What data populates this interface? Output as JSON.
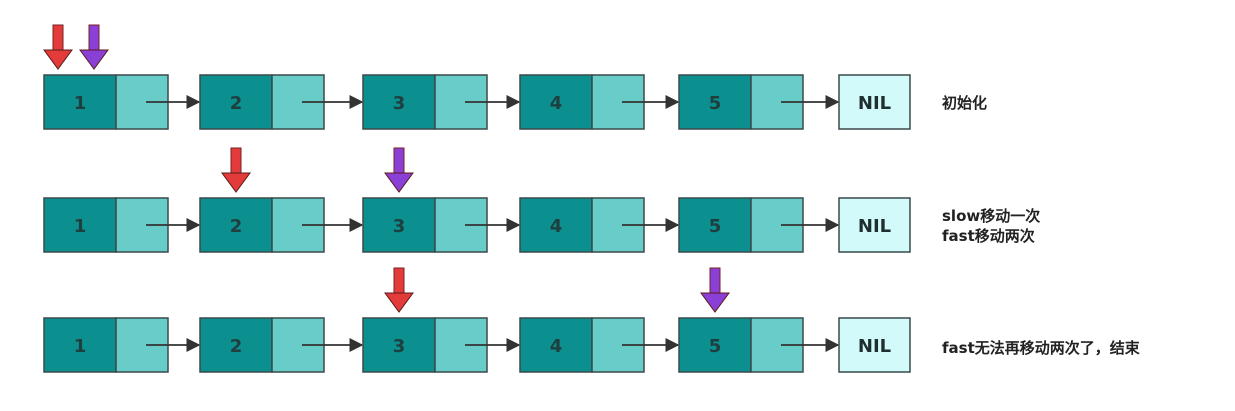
{
  "colors": {
    "data_cell": "#0b8f8f",
    "pointer_cell": "#68cdc8",
    "nil_cell": "#d2fafa",
    "border": "#3a4a4a",
    "link_arrow": "#333333",
    "slow_pointer": "#e33a3a",
    "fast_pointer": "#8a3fd6"
  },
  "nil_label": "NIL",
  "rows": [
    {
      "nodes": [
        "1",
        "2",
        "3",
        "4",
        "5"
      ],
      "slow_index": 0,
      "fast_index": 0,
      "caption": [
        "初始化"
      ]
    },
    {
      "nodes": [
        "1",
        "2",
        "3",
        "4",
        "5"
      ],
      "slow_index": 1,
      "fast_index": 2,
      "caption": [
        "slow移动一次",
        "fast移动两次"
      ]
    },
    {
      "nodes": [
        "1",
        "2",
        "3",
        "4",
        "5"
      ],
      "slow_index": 2,
      "fast_index": 4,
      "caption": [
        "fast无法再移动两次了，结束"
      ]
    }
  ]
}
